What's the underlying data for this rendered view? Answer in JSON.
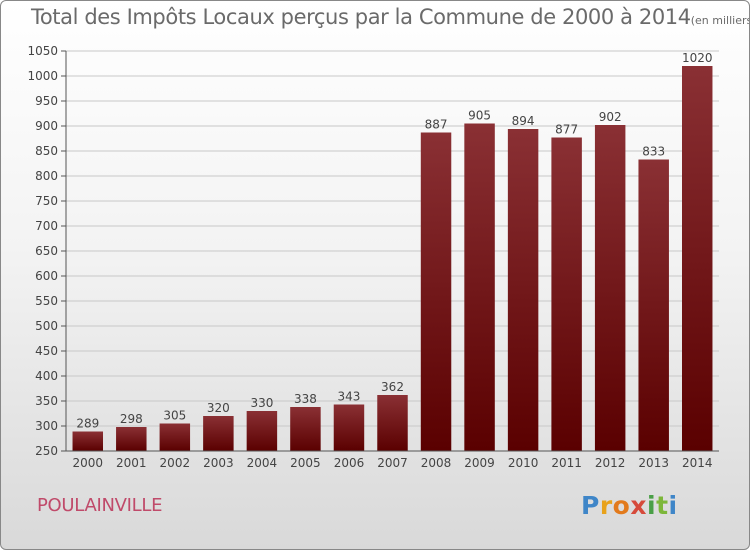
{
  "title": {
    "main": "Total des Impôts Locaux perçus par la Commune de 2000 à 2014",
    "unit": "(en milliers d'€)"
  },
  "commune": "POULAINVILLE",
  "logo": {
    "text": "Proxiti",
    "colors": [
      "#3f86c8",
      "#e8a21b",
      "#e27a1c",
      "#d64a3b",
      "#4a9f47",
      "#7db73a"
    ]
  },
  "chart_data": {
    "type": "bar",
    "title": "Total des Impôts Locaux perçus par la Commune de 2000 à 2014",
    "unit_note": "(en milliers d'€)",
    "xlabel": "",
    "ylabel": "",
    "categories": [
      "2000",
      "2001",
      "2002",
      "2003",
      "2004",
      "2005",
      "2006",
      "2007",
      "2008",
      "2009",
      "2010",
      "2011",
      "2012",
      "2013",
      "2014"
    ],
    "values": [
      289,
      298,
      305,
      320,
      330,
      338,
      343,
      362,
      887,
      905,
      894,
      877,
      902,
      833,
      1020
    ],
    "ylim": [
      250,
      1050
    ],
    "yticks": [
      250,
      300,
      350,
      400,
      450,
      500,
      550,
      600,
      650,
      700,
      750,
      800,
      850,
      900,
      950,
      1000,
      1050
    ],
    "grid": true,
    "bar_color": "#7a1a1e",
    "legend": "none"
  }
}
